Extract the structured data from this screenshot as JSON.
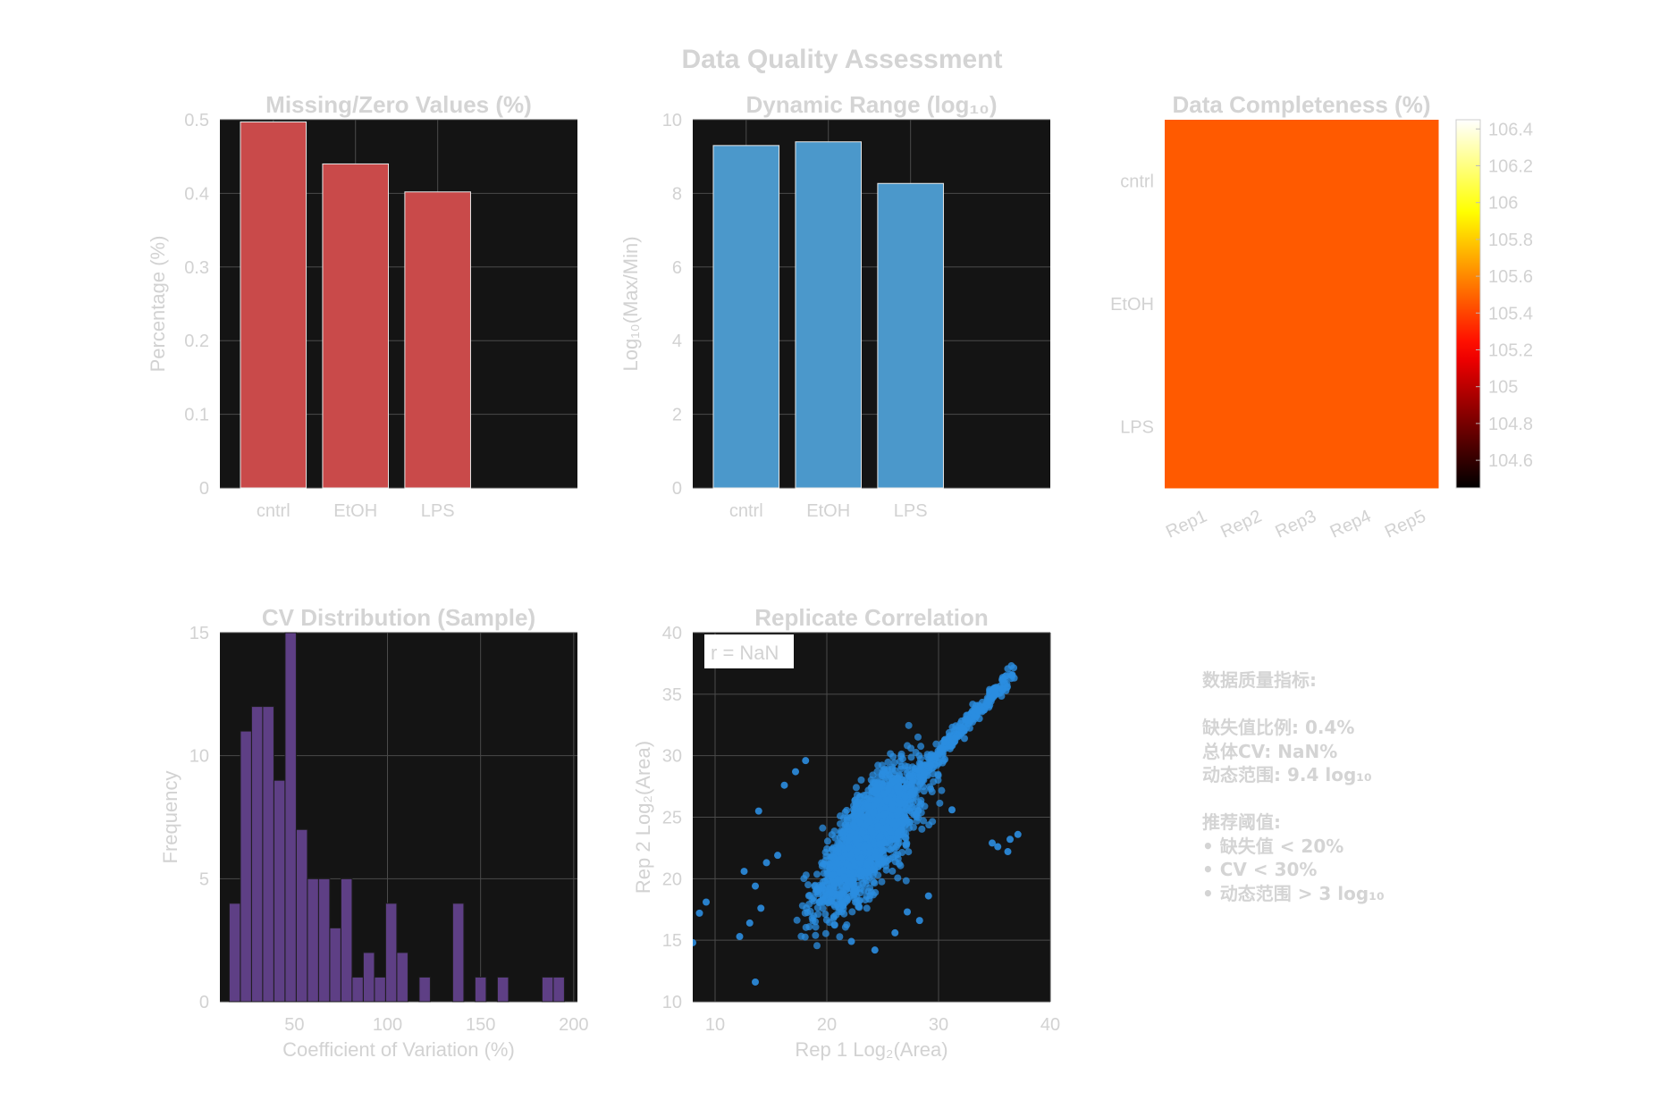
{
  "title": "Data Quality Assessment",
  "colors": {
    "panel_bg": "#141414",
    "missing_bar": "#c94a4a",
    "range_bar": "#4b98cb",
    "cv_bar": "#5e3f85",
    "scatter": "#2b8de0",
    "heatmap_fill": "#ff5a00",
    "text": "#d2d2d2"
  },
  "stats_text": {
    "heading": "数据质量指标:",
    "missing": "缺失值比例: 0.4%",
    "cv": "总体CV: NaN%",
    "dynamic": "动态范围: 9.4 log₁₀",
    "rec_heading": "推荐阈值:",
    "rec_missing": "• 缺失值 < 20%",
    "rec_cv": "• CV < 30%",
    "rec_dynamic": "• 动态范围 > 3 log₁₀"
  },
  "chart_data": [
    {
      "id": "missing",
      "type": "bar",
      "title": "Missing/Zero Values (%)",
      "ylabel": "Percentage (%)",
      "categories": [
        "cntrl",
        "EtOH",
        "LPS"
      ],
      "values": [
        0.497,
        0.44,
        0.402
      ],
      "ylim": [
        0,
        0.5
      ],
      "xlim": [
        0.35,
        4.7
      ],
      "yticks": [
        0,
        0.1,
        0.2,
        0.3,
        0.4,
        0.5
      ],
      "grid": true
    },
    {
      "id": "range",
      "type": "bar",
      "title": "Dynamic Range (log₁₀)",
      "ylabel": "Log₁₀(Max/Min)",
      "categories": [
        "cntrl",
        "EtOH",
        "LPS"
      ],
      "values": [
        9.3,
        9.4,
        8.27
      ],
      "ylim": [
        0,
        10
      ],
      "xlim": [
        0.35,
        4.7
      ],
      "yticks": [
        0,
        2,
        4,
        6,
        8,
        10
      ],
      "grid": true
    },
    {
      "id": "completeness",
      "type": "heatmap",
      "title": "Data Completeness (%)",
      "rows": [
        "cntrl",
        "EtOH",
        "LPS"
      ],
      "cols": [
        "Rep1",
        "Rep2",
        "Rep3",
        "Rep4",
        "Rep5"
      ],
      "values": [
        [
          105.5,
          105.5,
          105.5,
          105.5,
          105.5
        ],
        [
          105.5,
          105.5,
          105.5,
          105.5,
          105.5
        ],
        [
          105.5,
          105.5,
          105.5,
          105.5,
          105.5
        ]
      ],
      "colorbar": {
        "min": 104.45,
        "max": 106.45,
        "ticks": [
          "104.6",
          "104.8",
          "105",
          "105.2",
          "105.4",
          "105.6",
          "105.8",
          "106",
          "106.2",
          "106.4"
        ]
      }
    },
    {
      "id": "cv",
      "type": "bar",
      "title": "CV Distribution (Sample)",
      "xlabel": "Coefficient of Variation (%)",
      "ylabel": "Frequency",
      "bin_start": 15,
      "bin_width": 6,
      "counts": [
        4,
        11,
        12,
        12,
        9,
        15,
        7,
        5,
        5,
        3,
        5,
        1,
        2,
        1,
        4,
        2,
        0,
        1,
        0,
        0,
        4,
        0,
        1,
        0,
        1,
        0,
        0,
        0,
        1,
        1
      ],
      "xlim": [
        10,
        202
      ],
      "ylim": [
        0,
        15
      ],
      "xticks": [
        50,
        100,
        150,
        200
      ],
      "yticks": [
        0,
        5,
        10,
        15
      ],
      "grid": true
    },
    {
      "id": "scatter",
      "type": "scatter",
      "title": "Replicate Correlation",
      "xlabel": "Rep 1 Log₂(Area)",
      "ylabel": "Rep 2 Log₂(Area)",
      "annotation": "r = NaN",
      "xlim": [
        8,
        40
      ],
      "ylim": [
        10,
        40
      ],
      "xticks": [
        10,
        20,
        30,
        40
      ],
      "yticks": [
        10,
        15,
        20,
        25,
        30,
        35,
        40
      ],
      "grid": true,
      "outliers": [
        [
          8,
          14.8
        ],
        [
          8.6,
          17.2
        ],
        [
          9.2,
          18.1
        ],
        [
          12.2,
          15.3
        ],
        [
          13.1,
          16.4
        ],
        [
          13.6,
          19.4
        ],
        [
          12.6,
          20.6
        ],
        [
          14.1,
          17.6
        ],
        [
          13.9,
          25.5
        ],
        [
          14.6,
          21.3
        ],
        [
          15.6,
          21.9
        ],
        [
          16.2,
          27.6
        ],
        [
          17.2,
          28.7
        ],
        [
          18.1,
          29.6
        ],
        [
          35.3,
          22.6
        ],
        [
          36.4,
          23.2
        ],
        [
          36.2,
          22.2
        ],
        [
          37.1,
          23.6
        ],
        [
          34.8,
          22.9
        ],
        [
          27.2,
          17.3
        ],
        [
          28.3,
          16.6
        ],
        [
          29.1,
          18.6
        ],
        [
          26.1,
          15.6
        ],
        [
          24.3,
          14.2
        ],
        [
          22.2,
          14.9
        ],
        [
          13.6,
          11.6
        ],
        [
          31.2,
          25.6
        ]
      ],
      "trend_end": [
        36.8,
        36.9
      ]
    }
  ]
}
